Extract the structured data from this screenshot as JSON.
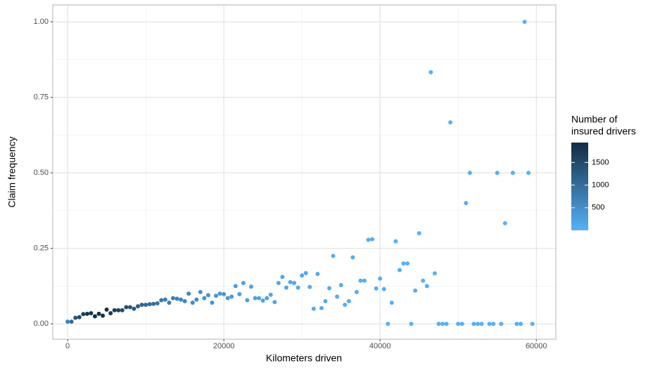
{
  "chart_data": {
    "type": "scatter",
    "x_label": "Kilometers driven",
    "y_label": "Claim frequency",
    "legend_title": [
      "Number of",
      "insured drivers"
    ],
    "x": [
      0,
      500,
      1000,
      1500,
      2000,
      2500,
      3000,
      3500,
      4000,
      4500,
      5000,
      5500,
      6000,
      6500,
      7000,
      7500,
      8000,
      8500,
      9000,
      9500,
      10000,
      10500,
      11000,
      11500,
      12000,
      12500,
      13000,
      13500,
      14000,
      14500,
      15000,
      15500,
      16000,
      16500,
      17000,
      17500,
      18000,
      18500,
      19000,
      19500,
      20000,
      20500,
      21000,
      21500,
      22000,
      22500,
      23000,
      23500,
      24000,
      24500,
      25000,
      25500,
      26000,
      26500,
      27000,
      27500,
      28000,
      28500,
      29000,
      29500,
      30000,
      30500,
      31000,
      31500,
      32000,
      32500,
      33000,
      33500,
      34000,
      34500,
      35000,
      35500,
      36000,
      36500,
      37000,
      37500,
      38000,
      38500,
      39000,
      39500,
      40000,
      40500,
      41000,
      41500,
      42000,
      42500,
      43000,
      43500,
      44000,
      44500,
      45000,
      45500,
      46000,
      46500,
      47000,
      47500,
      48000,
      48500,
      49000,
      50000,
      50500,
      51000,
      51500,
      52000,
      52500,
      53000,
      54000,
      54500,
      55000,
      55500,
      56000,
      57000,
      57500,
      58000,
      58500,
      59000,
      59500
    ],
    "y": [
      0.007,
      0.007,
      0.02,
      0.022,
      0.032,
      0.033,
      0.035,
      0.025,
      0.033,
      0.027,
      0.047,
      0.035,
      0.045,
      0.045,
      0.045,
      0.055,
      0.055,
      0.05,
      0.058,
      0.063,
      0.063,
      0.065,
      0.066,
      0.068,
      0.078,
      0.08,
      0.07,
      0.085,
      0.083,
      0.08,
      0.075,
      0.1,
      0.07,
      0.08,
      0.105,
      0.085,
      0.095,
      0.07,
      0.093,
      0.1,
      0.098,
      0.085,
      0.09,
      0.125,
      0.098,
      0.135,
      0.078,
      0.123,
      0.085,
      0.085,
      0.077,
      0.085,
      0.096,
      0.072,
      0.135,
      0.155,
      0.12,
      0.138,
      0.135,
      0.12,
      0.16,
      0.168,
      0.122,
      0.05,
      0.165,
      0.052,
      0.075,
      0.118,
      0.225,
      0.09,
      0.128,
      0.063,
      0.075,
      0.22,
      0.105,
      0.143,
      0.143,
      0.278,
      0.28,
      0.117,
      0.15,
      0.115,
      0,
      0.07,
      0.273,
      0.178,
      0.2,
      0.2,
      0,
      0.11,
      0.3,
      0.143,
      0.125,
      0.833,
      0.167,
      0,
      0,
      0,
      0.667,
      0,
      0,
      0.4,
      0.5,
      0,
      0,
      0,
      0,
      0,
      0.5,
      0,
      0.333,
      0.5,
      0,
      0,
      1.0,
      0.5,
      0
    ],
    "color_values": [
      700,
      1000,
      1300,
      1500,
      1650,
      1750,
      1800,
      1900,
      1900,
      1880,
      1850,
      1750,
      1655,
      1566,
      1481,
      1401,
      1325,
      1254,
      1186,
      1122,
      1061,
      1004,
      950,
      898,
      850,
      804,
      760,
      719,
      680,
      644,
      609,
      576,
      545,
      515,
      487,
      461,
      436,
      413,
      390,
      369,
      349,
      330,
      313,
      296,
      280,
      265,
      250,
      237,
      224,
      212,
      200,
      190,
      179,
      170,
      160,
      152,
      144,
      136,
      128,
      121,
      115,
      109,
      103,
      97,
      92,
      87,
      82,
      78,
      73,
      69,
      66,
      62,
      59,
      56,
      53,
      50,
      47,
      44,
      42,
      40,
      38,
      35,
      3,
      30,
      11,
      28,
      10,
      10,
      2,
      25,
      10,
      21,
      16,
      6,
      12,
      2,
      1,
      1,
      3,
      1,
      1,
      5,
      2,
      1,
      1,
      1,
      1,
      1,
      2,
      1,
      3,
      2,
      1,
      1,
      1,
      2,
      1
    ],
    "color_low": "#56B1F7",
    "color_high": "#132B43",
    "color_lim": [
      1,
      1940
    ],
    "color_ticks": [
      500,
      1000,
      1500
    ],
    "xlim": [
      -1900,
      62500
    ],
    "ylim": [
      -0.051,
      1.056
    ],
    "xticks": [
      0,
      20000,
      40000,
      60000
    ],
    "x_minor_ticks": [
      10000,
      30000,
      50000
    ],
    "yticks": [
      {
        "value": 0,
        "label": "0.00"
      },
      {
        "value": 0.25,
        "label": "0.25"
      },
      {
        "value": 0.5,
        "label": "0.50"
      },
      {
        "value": 0.75,
        "label": "0.75"
      },
      {
        "value": 1,
        "label": "1.00"
      }
    ],
    "y_minor_ticks": [
      0.125,
      0.375,
      0.625,
      0.875
    ],
    "grid": true
  }
}
